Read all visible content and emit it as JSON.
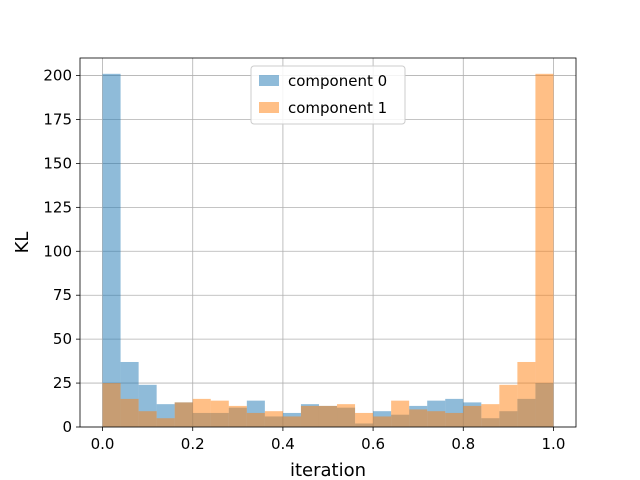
{
  "chart_data": {
    "type": "bar",
    "subtype": "overlapping-histogram",
    "xlabel": "iteration",
    "ylabel": "KL",
    "xlim": [
      -0.05,
      1.05
    ],
    "ylim": [
      0,
      210
    ],
    "xticks": [
      "0.0",
      "0.2",
      "0.4",
      "0.6",
      "0.8",
      "1.0"
    ],
    "xtick_values": [
      0.0,
      0.2,
      0.4,
      0.6,
      0.8,
      1.0
    ],
    "yticks": [
      "0",
      "25",
      "50",
      "75",
      "100",
      "125",
      "150",
      "175",
      "200"
    ],
    "ytick_values": [
      0,
      25,
      50,
      75,
      100,
      125,
      150,
      175,
      200
    ],
    "grid": true,
    "legend_position": "top-center",
    "bin_start": 0.0,
    "bin_end": 1.0,
    "series": [
      {
        "name": "component 0",
        "color": "#1f77b4",
        "alpha": 0.5,
        "values": [
          201,
          37,
          24,
          13,
          14,
          8,
          8,
          11,
          15,
          6,
          8,
          13,
          12,
          11,
          2,
          9,
          7,
          12,
          15,
          16,
          14,
          5,
          9,
          16,
          25
        ]
      },
      {
        "name": "component 1",
        "color": "#ff7f0e",
        "alpha": 0.5,
        "values": [
          25,
          16,
          9,
          5,
          14,
          16,
          15,
          12,
          8,
          9,
          6,
          12,
          12,
          13,
          8,
          6,
          15,
          10,
          9,
          8,
          12,
          13,
          24,
          37,
          201
        ]
      }
    ]
  }
}
